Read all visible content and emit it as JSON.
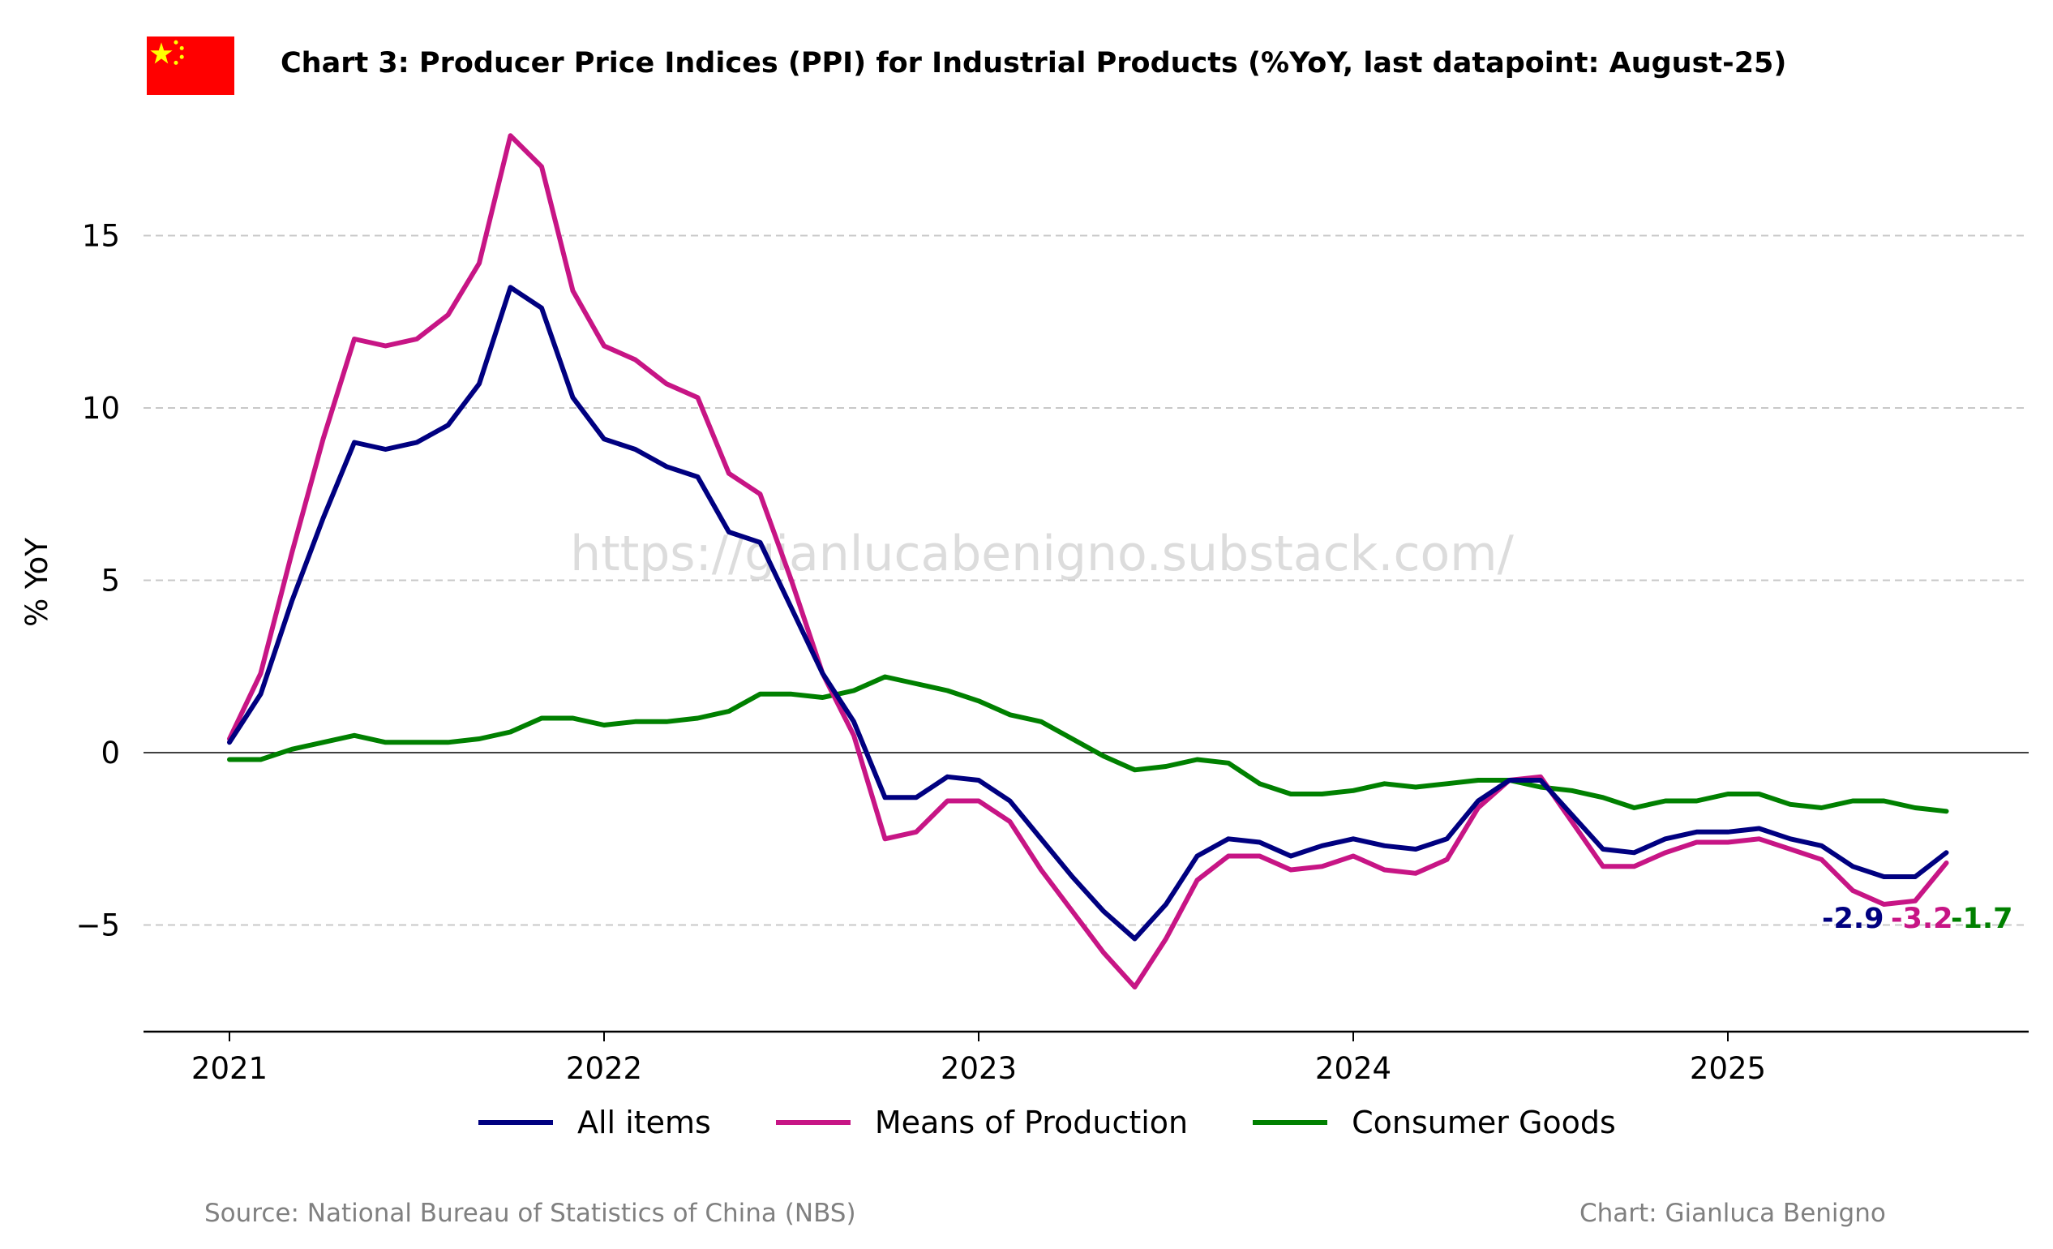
{
  "header": {
    "title": "Chart 3: Producer Price Indices (PPI) for Industrial Products (%YoY, last datapoint: August-25)",
    "flag_icon": "china-flag-icon"
  },
  "footer": {
    "source": "Source: National Bureau of Statistics of China (NBS)",
    "credit": "Chart: Gianluca Benigno"
  },
  "watermark": "https://gianlucabenigno.substack.com/",
  "colors": {
    "all_items": "#000080",
    "means_of_production": "#C71585",
    "consumer_goods": "#008000",
    "grid": "#c8c8c8",
    "flag_red": "#FF0000",
    "flag_star": "#FFFF00"
  },
  "chart_data": {
    "type": "line",
    "title": "Chart 3: Producer Price Indices (PPI) for Industrial Products (%YoY, last datapoint: August-25)",
    "xlabel": "",
    "ylabel": "% YoY",
    "x_start": "2021-01",
    "x_end": "2025-08",
    "x_ticks": [
      "2021",
      "2022",
      "2023",
      "2024",
      "2025"
    ],
    "y_ticks": [
      -5,
      0,
      5,
      10,
      15
    ],
    "y_tick_labels": [
      "−5",
      "0",
      "5",
      "10",
      "15"
    ],
    "ylim": [
      -8,
      18
    ],
    "grid": "horizontal dashed",
    "legend_position": "bottom",
    "series": [
      {
        "name": "All items",
        "end_label": "-2.9",
        "values": [
          0.3,
          1.7,
          4.4,
          6.8,
          9.0,
          8.8,
          9.0,
          9.5,
          10.7,
          13.5,
          12.9,
          10.3,
          9.1,
          8.8,
          8.3,
          8.0,
          6.4,
          6.1,
          4.2,
          2.3,
          0.9,
          -1.3,
          -1.3,
          -0.7,
          -0.8,
          -1.4,
          -2.5,
          -3.6,
          -4.6,
          -5.4,
          -4.4,
          -3.0,
          -2.5,
          -2.6,
          -3.0,
          -2.7,
          -2.5,
          -2.7,
          -2.8,
          -2.5,
          -1.4,
          -0.8,
          -0.8,
          -1.8,
          -2.8,
          -2.9,
          -2.5,
          -2.3,
          -2.3,
          -2.2,
          -2.5,
          -2.7,
          -3.3,
          -3.6,
          -3.6,
          -2.9
        ]
      },
      {
        "name": "Means of Production",
        "end_label": "-3.2",
        "values": [
          0.4,
          2.3,
          5.8,
          9.1,
          12.0,
          11.8,
          12.0,
          12.7,
          14.2,
          17.9,
          17.0,
          13.4,
          11.8,
          11.4,
          10.7,
          10.3,
          8.1,
          7.5,
          5.0,
          2.3,
          0.5,
          -2.5,
          -2.3,
          -1.4,
          -1.4,
          -2.0,
          -3.4,
          -4.6,
          -5.8,
          -6.8,
          -5.4,
          -3.7,
          -3.0,
          -3.0,
          -3.4,
          -3.3,
          -3.0,
          -3.4,
          -3.5,
          -3.1,
          -1.6,
          -0.8,
          -0.7,
          -2.0,
          -3.3,
          -3.3,
          -2.9,
          -2.6,
          -2.6,
          -2.5,
          -2.8,
          -3.1,
          -4.0,
          -4.4,
          -4.3,
          -3.2
        ]
      },
      {
        "name": "Consumer Goods",
        "end_label": "-1.7",
        "values": [
          -0.2,
          -0.2,
          0.1,
          0.3,
          0.5,
          0.3,
          0.3,
          0.3,
          0.4,
          0.6,
          1.0,
          1.0,
          0.8,
          0.9,
          0.9,
          1.0,
          1.2,
          1.7,
          1.7,
          1.6,
          1.8,
          2.2,
          2.0,
          1.8,
          1.5,
          1.1,
          0.9,
          0.4,
          -0.1,
          -0.5,
          -0.4,
          -0.2,
          -0.3,
          -0.9,
          -1.2,
          -1.2,
          -1.1,
          -0.9,
          -1.0,
          -0.9,
          -0.8,
          -0.8,
          -1.0,
          -1.1,
          -1.3,
          -1.6,
          -1.4,
          -1.4,
          -1.2,
          -1.2,
          -1.5,
          -1.6,
          -1.4,
          -1.4,
          -1.6,
          -1.7
        ]
      }
    ]
  }
}
